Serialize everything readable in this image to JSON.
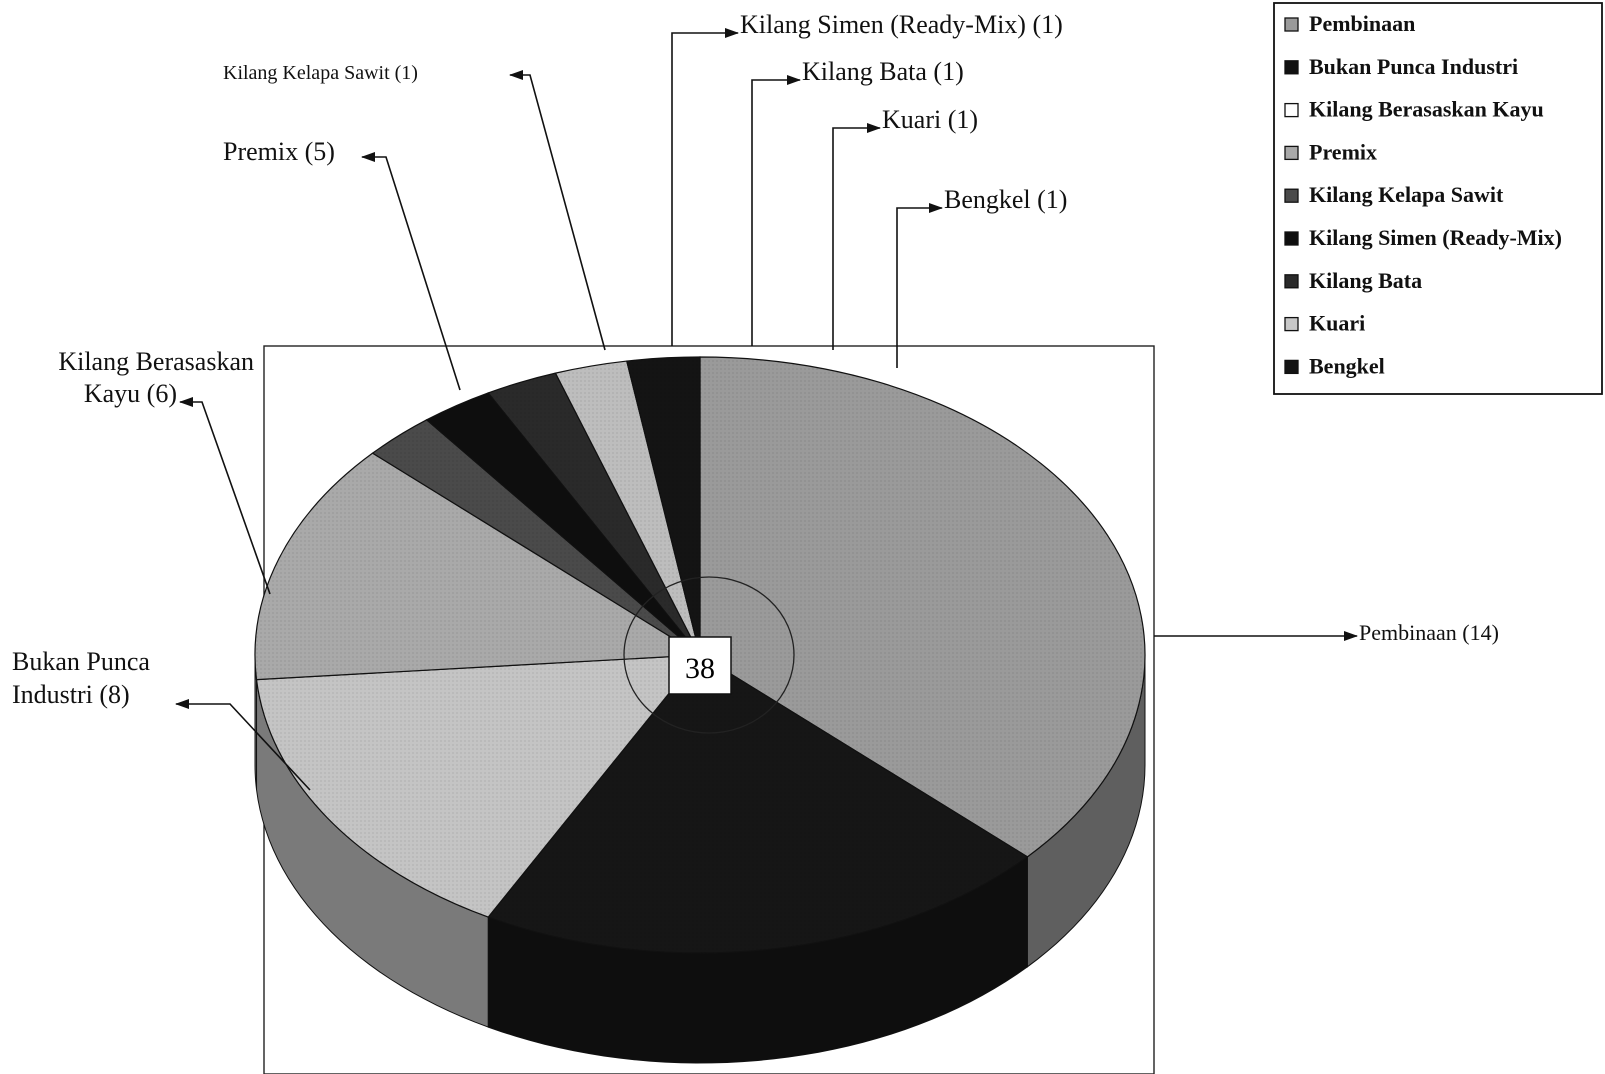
{
  "chart_data": {
    "type": "pie",
    "total_label": "38",
    "slices": [
      {
        "name": "Pembinaan",
        "value": 14,
        "callout": "Pembinaan  (14)",
        "color": "#9a9a9a"
      },
      {
        "name": "Bukan Punca Industri",
        "value": 8,
        "callout_lines": [
          "Bukan Punca",
          "Industri  (8)"
        ],
        "color": "#161616"
      },
      {
        "name": "Kilang Berasaskan Kayu",
        "value": 6,
        "callout_lines": [
          "Kilang Berasaskan",
          "Kayu (6)"
        ],
        "color": "#c4c4c4"
      },
      {
        "name": "Premix",
        "value": 5,
        "callout": "Premix (5)",
        "color": "#a9a9a9"
      },
      {
        "name": "Kilang Kelapa Sawit",
        "value": 1,
        "callout": "Kilang Kelapa Sawit (1)",
        "color": "#4a4a4a"
      },
      {
        "name": "Kilang Simen (Ready-Mix)",
        "value": 1,
        "callout": "Kilang Simen (Ready-Mix) (1)",
        "color": "#0e0e0e"
      },
      {
        "name": "Kilang Bata",
        "value": 1,
        "callout": "Kilang Bata (1)",
        "color": "#2a2a2a"
      },
      {
        "name": "Kuari",
        "value": 1,
        "callout": "Kuari (1)",
        "color": "#bdbdbd"
      },
      {
        "name": "Bengkel",
        "value": 1,
        "callout": "Bengkel (1)",
        "color": "#141414"
      }
    ],
    "legend": {
      "placement": "top-right",
      "entries": [
        "Pembinaan",
        "Bukan Punca Industri",
        "Kilang Berasaskan Kayu",
        "Premix",
        "Kilang Kelapa Sawit",
        "Kilang Simen (Ready-Mix)",
        "Kilang Bata",
        "Kuari",
        "Bengkel"
      ],
      "swatch_colors": [
        "#9a9a9a",
        "#111111",
        "#ffffff",
        "#a9a9a9",
        "#4a4a4a",
        "#0e0e0e",
        "#2a2a2a",
        "#c8c8c8",
        "#141414"
      ]
    }
  }
}
